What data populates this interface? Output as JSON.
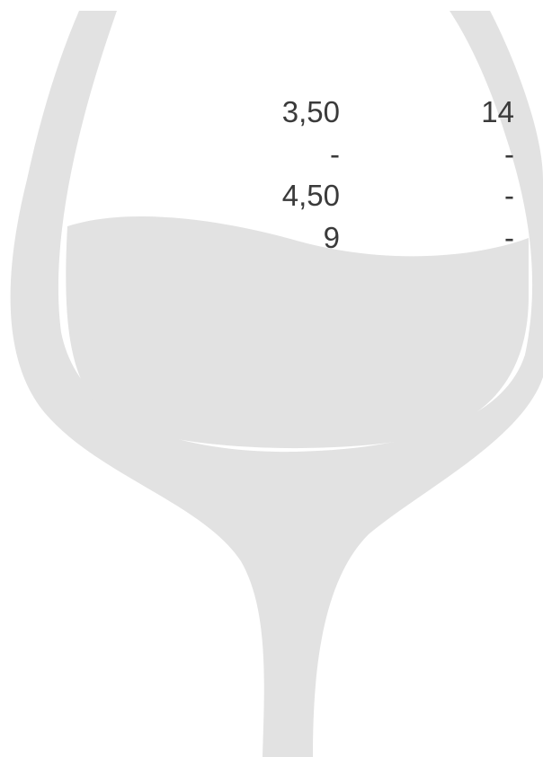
{
  "table": {
    "rows": [
      [
        "3,50",
        "14"
      ],
      [
        "-",
        "-"
      ],
      [
        "4,50",
        "-"
      ],
      [
        "9",
        "-"
      ]
    ]
  }
}
